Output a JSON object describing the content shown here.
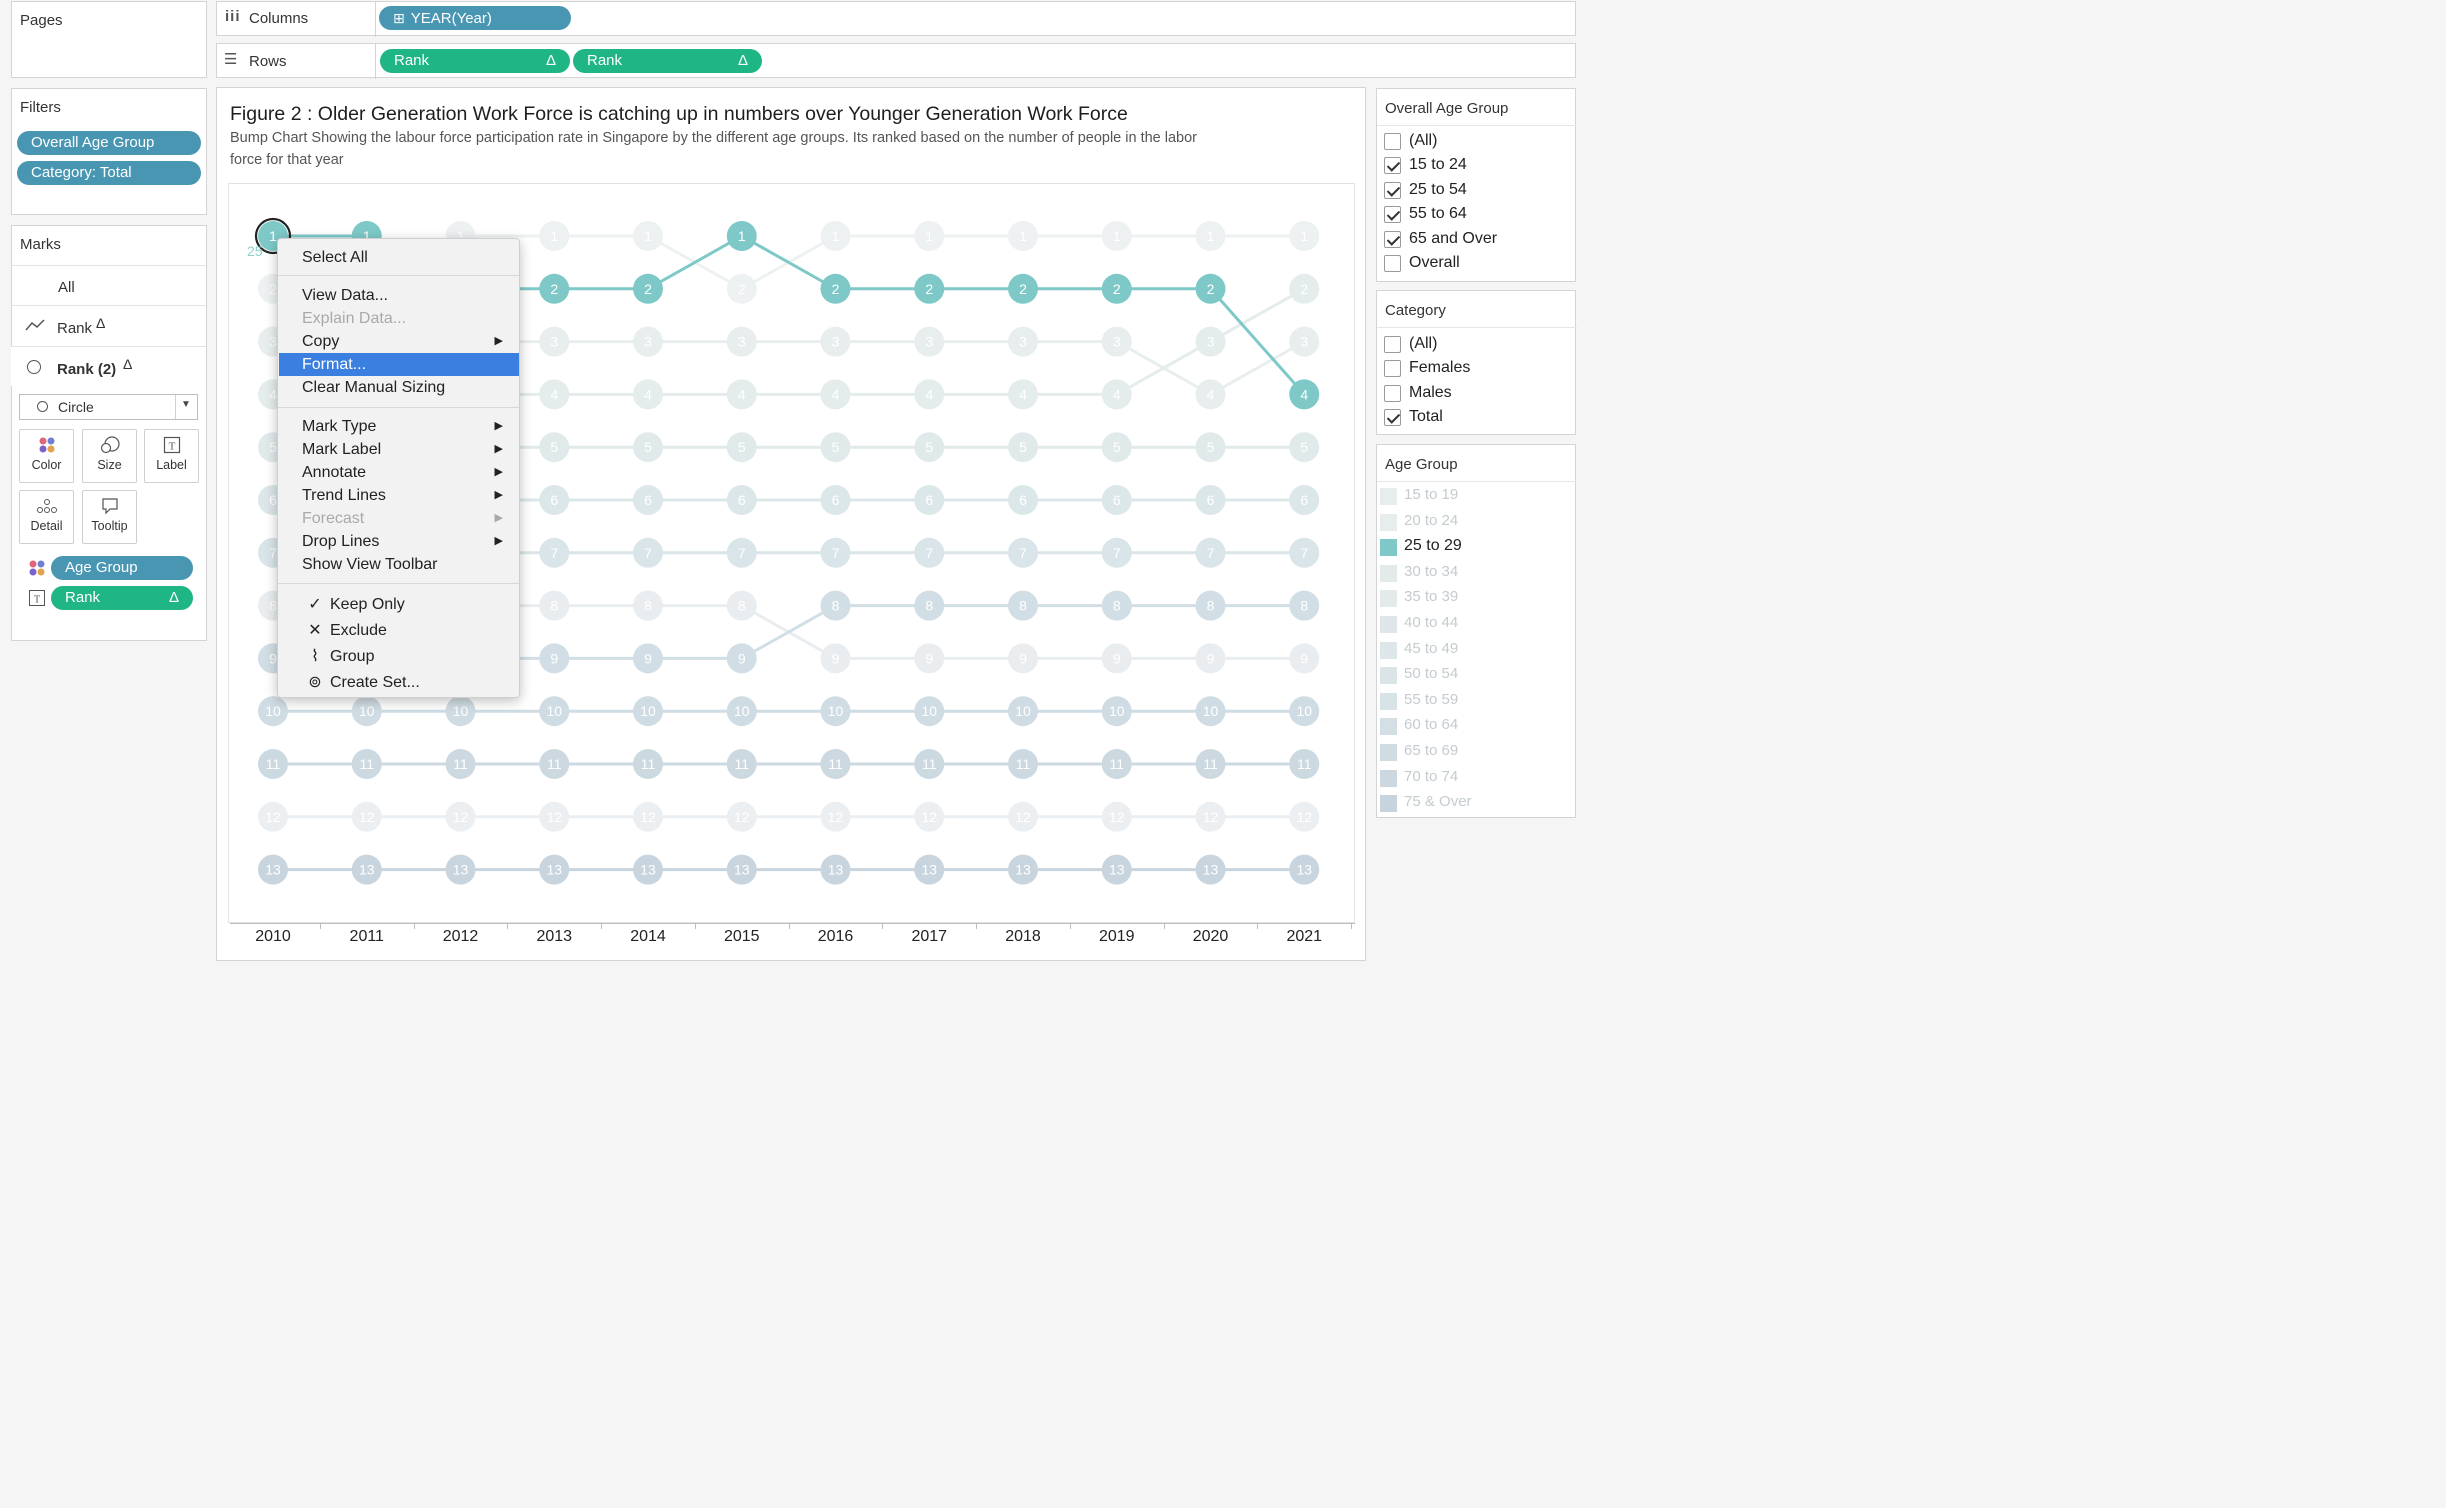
{
  "shelves": {
    "pages_label": "Pages",
    "columns_label": "Columns",
    "rows_label": "Rows",
    "columns_pill": "YEAR(Year)",
    "rows_pills": [
      "Rank",
      "Rank"
    ],
    "delta_symbol": "Δ"
  },
  "filters": {
    "title": "Filters",
    "pills": [
      "Overall Age Group",
      "Category: Total"
    ]
  },
  "marks": {
    "title": "Marks",
    "all_label": "All",
    "layer1_label": "Rank",
    "layer2_label": "Rank (2)",
    "mark_type": "Circle",
    "buttons": [
      "Color",
      "Size",
      "Label",
      "Detail",
      "Tooltip"
    ],
    "pills": [
      "Age Group",
      "Rank"
    ]
  },
  "chart_header": {
    "title": "Figure 2 : Older Generation Work Force is catching up in numbers over  Younger Generation Work Force",
    "subtitle_line1": "Bump Chart Showing the labour force participation rate in Singapore by the different age groups. Its ranked based on the number of people in the labor",
    "subtitle_line2": "force for that year",
    "edge_label": "25"
  },
  "context_menu": {
    "items": [
      {
        "label": "Select All",
        "state": "normal"
      },
      {
        "label": "View Data...",
        "state": "normal"
      },
      {
        "label": "Explain Data...",
        "state": "disabled"
      },
      {
        "label": "Copy",
        "state": "normal",
        "submenu": true
      },
      {
        "label": "Format...",
        "state": "selected"
      },
      {
        "label": "Clear Manual Sizing",
        "state": "normal"
      },
      {
        "label": "Mark Type",
        "state": "normal",
        "submenu": true
      },
      {
        "label": "Mark Label",
        "state": "normal",
        "submenu": true
      },
      {
        "label": "Annotate",
        "state": "normal",
        "submenu": true
      },
      {
        "label": "Trend Lines",
        "state": "normal",
        "submenu": true
      },
      {
        "label": "Forecast",
        "state": "disabled",
        "submenu": true
      },
      {
        "label": "Drop Lines",
        "state": "normal",
        "submenu": true
      },
      {
        "label": "Show View Toolbar",
        "state": "normal"
      },
      {
        "label": "Keep Only",
        "state": "normal",
        "icon": "check-icon"
      },
      {
        "label": "Exclude",
        "state": "normal",
        "icon": "x-icon"
      },
      {
        "label": "Group",
        "state": "normal",
        "icon": "paperclip-icon"
      },
      {
        "label": "Create Set...",
        "state": "normal",
        "icon": "set-icon"
      }
    ]
  },
  "overall_age_group": {
    "title": "Overall Age Group",
    "items": [
      {
        "label": "(All)",
        "checked": false
      },
      {
        "label": "15 to 24",
        "checked": true
      },
      {
        "label": "25 to 54",
        "checked": true
      },
      {
        "label": "55 to 64",
        "checked": true
      },
      {
        "label": "65 and Over",
        "checked": true
      },
      {
        "label": "Overall",
        "checked": false
      }
    ]
  },
  "category": {
    "title": "Category",
    "items": [
      {
        "label": "(All)",
        "checked": false
      },
      {
        "label": "Females",
        "checked": false
      },
      {
        "label": "Males",
        "checked": false
      },
      {
        "label": "Total",
        "checked": true
      }
    ]
  },
  "age_group_legend": {
    "title": "Age Group",
    "items": [
      {
        "label": "15 to 19",
        "color": "#e7ecec",
        "active": false
      },
      {
        "label": "20 to 24",
        "color": "#e7ecec",
        "active": false
      },
      {
        "label": "25 to 29",
        "color": "#7ec9c8",
        "active": true
      },
      {
        "label": "30 to 34",
        "color": "#e3eaea",
        "active": false
      },
      {
        "label": "35 to 39",
        "color": "#e3eaea",
        "active": false
      },
      {
        "label": "40 to 44",
        "color": "#dfe6e9",
        "active": false
      },
      {
        "label": "45 to 49",
        "color": "#dde6e9",
        "active": false
      },
      {
        "label": "50 to 54",
        "color": "#dbe5e8",
        "active": false
      },
      {
        "label": "55 to 59",
        "color": "#d8e3e7",
        "active": false
      },
      {
        "label": "60 to 64",
        "color": "#d3dfe5",
        "active": false
      },
      {
        "label": "65 to 69",
        "color": "#d0dbe2",
        "active": false
      },
      {
        "label": "70 to 74",
        "color": "#ccd7df",
        "active": false
      },
      {
        "label": "75 & Over",
        "color": "#c8d4dd",
        "active": false
      }
    ]
  },
  "chart_data": {
    "type": "line",
    "x": [
      2010,
      2011,
      2012,
      2013,
      2014,
      2015,
      2016,
      2017,
      2018,
      2019,
      2020,
      2021
    ],
    "rank_range": [
      1,
      13
    ],
    "highlighted_series": {
      "name": "25 to 29",
      "color": "#7ec9c8",
      "values": [
        1,
        1,
        2,
        2,
        2,
        1,
        2,
        2,
        2,
        2,
        2,
        4
      ]
    },
    "series": [
      {
        "color": "#edf1f1",
        "values": [
          2,
          2,
          1,
          1,
          1,
          2,
          1,
          1,
          1,
          1,
          1,
          1
        ]
      },
      {
        "color": "#e8eeee",
        "values": [
          3,
          3,
          3,
          3,
          3,
          3,
          3,
          3,
          3,
          3,
          4,
          3
        ]
      },
      {
        "color": "#e4ecec",
        "values": [
          4,
          4,
          4,
          4,
          4,
          4,
          4,
          4,
          4,
          4,
          3,
          2
        ]
      },
      {
        "color": "#e1eaeb",
        "values": [
          5,
          5,
          5,
          5,
          5,
          5,
          5,
          5,
          5,
          5,
          5,
          5
        ]
      },
      {
        "color": "#dce7ea",
        "values": [
          6,
          6,
          6,
          6,
          6,
          6,
          6,
          6,
          6,
          6,
          6,
          6
        ]
      },
      {
        "color": "#d9e5e9",
        "values": [
          7,
          7,
          7,
          7,
          7,
          7,
          7,
          7,
          7,
          7,
          7,
          7
        ]
      },
      {
        "color": "#e9edef",
        "values": [
          8,
          8,
          8,
          8,
          8,
          8,
          9,
          9,
          9,
          9,
          9,
          9
        ]
      },
      {
        "color": "#d2dee5",
        "values": [
          9,
          9,
          9,
          9,
          9,
          9,
          8,
          8,
          8,
          8,
          8,
          8
        ]
      },
      {
        "color": "#d0dce3",
        "values": [
          10,
          10,
          10,
          10,
          10,
          10,
          10,
          10,
          10,
          10,
          10,
          10
        ]
      },
      {
        "color": "#cdd9e1",
        "values": [
          11,
          11,
          11,
          11,
          11,
          11,
          11,
          11,
          11,
          11,
          11,
          11
        ]
      },
      {
        "color": "#eceff1",
        "values": [
          12,
          12,
          12,
          12,
          12,
          12,
          12,
          12,
          12,
          12,
          12,
          12
        ]
      },
      {
        "color": "#c8d5de",
        "values": [
          13,
          13,
          13,
          13,
          13,
          13,
          13,
          13,
          13,
          13,
          13,
          13
        ]
      }
    ]
  }
}
